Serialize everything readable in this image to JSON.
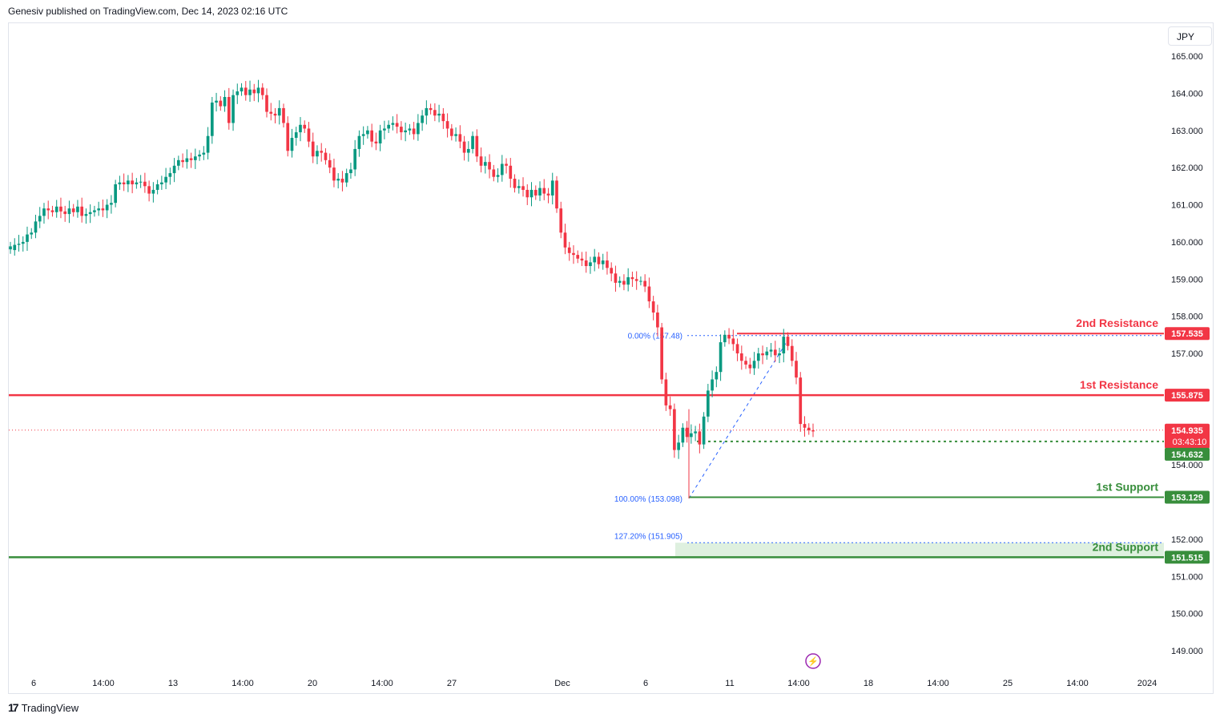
{
  "header": {
    "published": "Genesiv published on TradingView.com, Dec 14, 2023 02:16 UTC"
  },
  "footer": {
    "brand": "TradingView",
    "logo_glyph": "17"
  },
  "toolbar": {
    "currency": "JPY"
  },
  "colors": {
    "up": "#089981",
    "down": "#f23645",
    "resistance": "#f23645",
    "support": "#388e3c",
    "fib": "#2962ff",
    "fib_text": "#2962ff",
    "grid": "#f0f3fa"
  },
  "chart_data": {
    "type": "candlestick",
    "title": "",
    "ylim": [
      148.3,
      165.7
    ],
    "y_ticks": [
      "165.000",
      "164.000",
      "163.000",
      "162.000",
      "161.000",
      "160.000",
      "159.000",
      "158.000",
      "157.000",
      "154.000",
      "152.000",
      "151.000",
      "150.000",
      "149.000"
    ],
    "x_ticks": [
      "6",
      "14:00",
      "13",
      "14:00",
      "20",
      "14:00",
      "27",
      "Dec",
      "6",
      "11",
      "14:00",
      "18",
      "14:00",
      "25",
      "14:00",
      "2024"
    ],
    "levels": [
      {
        "name": "2nd Resistance",
        "value": 157.535,
        "label": "157.535",
        "kind": "resistance"
      },
      {
        "name": "1st Resistance",
        "value": 155.875,
        "label": "155.875",
        "kind": "resistance"
      },
      {
        "name": "1st Support",
        "value": 153.129,
        "label": "153.129",
        "kind": "support"
      },
      {
        "name": "2nd Support",
        "value": 151.515,
        "label": "151.515",
        "kind": "support"
      }
    ],
    "current_price": {
      "value": 154.935,
      "label": "154.935",
      "countdown": "03:43:10"
    },
    "pivot_line": {
      "value": 154.632,
      "label": "154.632"
    },
    "fib": [
      {
        "label": "0.00% (157.48)",
        "value": 157.48
      },
      {
        "label": "100.00% (153.098)",
        "value": 153.098
      },
      {
        "label": "127.20% (151.905)",
        "value": 151.905
      }
    ],
    "series": [
      [
        159.8,
        159.78,
        159.92,
        159.95,
        160.0,
        160.2,
        160.25,
        160.55,
        160.7,
        160.9,
        160.85,
        160.8,
        160.95,
        160.82,
        160.75,
        160.9,
        160.8,
        160.95,
        160.7,
        160.75,
        160.8,
        160.85,
        160.9,
        160.85,
        161.0,
        161.05,
        161.55,
        161.6,
        161.55,
        161.65,
        161.55,
        161.6,
        161.62,
        161.5,
        161.3,
        161.4,
        161.55,
        161.6,
        161.75,
        161.85,
        162.05,
        162.2,
        162.15,
        162.25,
        162.2,
        162.3,
        162.35,
        162.4,
        162.85,
        163.75,
        163.8,
        163.65,
        163.9,
        163.2,
        163.95,
        164.05,
        164.15,
        163.95,
        164.1,
        164.0,
        164.15,
        163.95,
        163.5,
        163.45,
        163.4,
        163.6,
        163.2,
        162.45,
        162.8,
        162.95,
        163.15,
        163.05,
        162.7,
        162.3,
        162.45,
        162.4,
        162.2,
        162.0,
        161.65,
        161.7,
        161.6,
        161.85,
        161.95,
        162.5,
        162.85,
        162.9,
        163.0,
        162.7,
        162.65,
        163.0,
        163.05,
        163.15,
        163.2,
        163.1,
        162.95,
        163.0,
        163.05,
        162.9,
        163.2,
        163.4,
        163.6,
        163.55,
        163.4,
        163.45,
        163.25,
        163.05,
        162.85,
        162.9,
        162.7,
        162.4,
        162.5,
        162.85,
        162.3,
        162.05,
        162.15,
        161.95,
        161.75,
        161.8,
        162.1,
        162.05,
        161.7,
        161.45,
        161.5,
        161.4,
        161.2,
        161.4,
        161.25,
        161.45,
        161.3,
        161.25,
        161.65,
        160.9,
        160.25,
        159.85,
        159.7,
        159.65,
        159.55,
        159.5,
        159.35,
        159.45,
        159.6,
        159.4,
        159.5,
        159.3,
        159.15,
        158.9,
        158.95,
        158.85,
        159.05,
        159.0,
        158.95,
        158.95,
        158.8,
        158.4,
        158.1,
        157.7,
        156.3,
        155.6,
        155.5,
        154.4,
        154.6,
        155.0,
        154.75,
        154.85,
        154.9,
        154.55,
        155.3,
        156.0,
        156.3,
        156.5,
        157.3,
        157.5,
        157.4,
        157.25,
        157.0,
        156.8,
        156.7,
        156.6,
        156.8,
        157.0,
        156.95,
        157.05,
        157.1,
        156.95,
        157.0,
        157.45,
        157.2,
        156.8,
        156.35,
        155.1,
        155.0,
        154.93
      ],
      [
        159.88,
        159.92,
        159.95,
        160.0,
        160.2,
        160.25,
        160.55,
        160.7,
        160.9,
        160.85,
        160.8,
        160.95,
        160.82,
        160.75,
        160.9,
        160.8,
        160.95,
        160.7,
        160.75,
        160.8,
        160.85,
        160.9,
        160.85,
        161.0,
        161.05,
        161.55,
        161.6,
        161.55,
        161.65,
        161.55,
        161.6,
        161.62,
        161.5,
        161.3,
        161.4,
        161.55,
        161.6,
        161.75,
        161.85,
        162.05,
        162.2,
        162.15,
        162.25,
        162.2,
        162.3,
        162.35,
        162.4,
        162.85,
        163.75,
        163.8,
        163.65,
        163.9,
        163.2,
        163.95,
        164.05,
        164.15,
        163.95,
        164.1,
        164.0,
        164.15,
        163.95,
        163.5,
        163.45,
        163.4,
        163.6,
        163.2,
        162.45,
        162.8,
        162.95,
        163.15,
        163.05,
        162.7,
        162.3,
        162.45,
        162.4,
        162.2,
        162.0,
        161.65,
        161.7,
        161.6,
        161.85,
        161.95,
        162.5,
        162.85,
        162.9,
        163.0,
        162.7,
        162.65,
        163.0,
        163.05,
        163.15,
        163.2,
        163.1,
        162.95,
        163.0,
        163.05,
        162.9,
        163.2,
        163.4,
        163.6,
        163.55,
        163.4,
        163.45,
        163.25,
        163.05,
        162.85,
        162.9,
        162.7,
        162.4,
        162.5,
        162.85,
        162.3,
        162.05,
        162.15,
        161.95,
        161.75,
        161.8,
        162.1,
        162.05,
        161.7,
        161.45,
        161.5,
        161.4,
        161.2,
        161.4,
        161.25,
        161.45,
        161.3,
        161.25,
        161.65,
        160.9,
        160.25,
        159.85,
        159.7,
        159.65,
        159.55,
        159.5,
        159.35,
        159.45,
        159.6,
        159.4,
        159.5,
        159.3,
        159.15,
        158.9,
        158.95,
        158.85,
        159.05,
        159.0,
        158.95,
        158.95,
        158.8,
        158.4,
        158.1,
        157.7,
        156.3,
        155.6,
        155.5,
        154.4,
        154.6,
        155.0,
        154.75,
        154.85,
        154.9,
        154.55,
        155.3,
        156.0,
        156.3,
        156.5,
        157.3,
        157.5,
        157.4,
        157.25,
        157.0,
        156.8,
        156.7,
        156.6,
        156.8,
        157.0,
        156.95,
        157.05,
        157.1,
        156.95,
        157.0,
        157.45,
        157.2,
        156.8,
        156.35,
        155.1,
        155.0,
        154.93,
        154.9
      ]
    ]
  }
}
